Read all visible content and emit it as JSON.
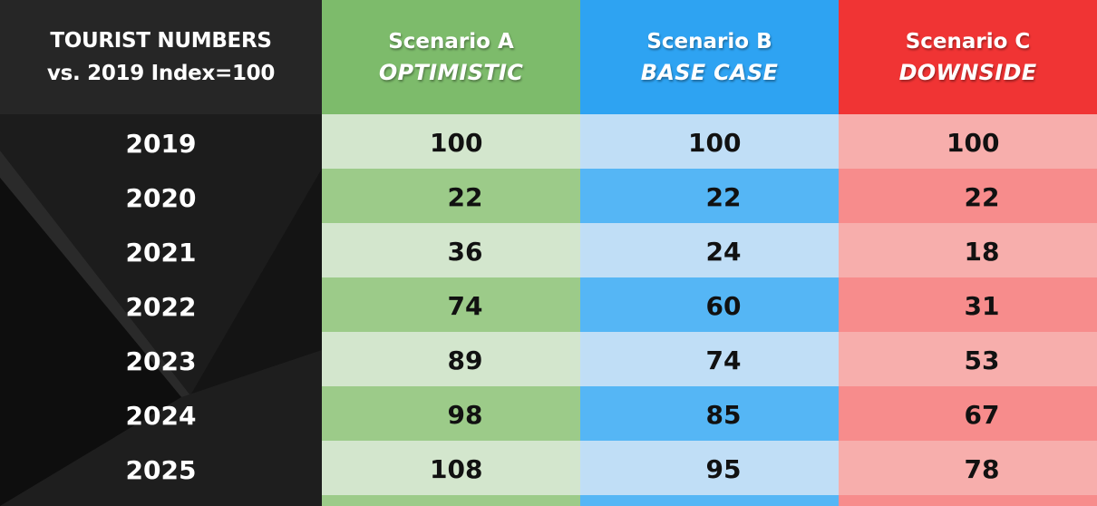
{
  "chart_data": {
    "type": "table",
    "title_lines": [
      "TOURIST NUMBERS",
      "vs. 2019 Index=100"
    ],
    "columns": [
      {
        "name": "Scenario A",
        "subtitle": "OPTIMISTIC",
        "color": "#7dbb6b"
      },
      {
        "name": "Scenario B",
        "subtitle": "BASE CASE",
        "color": "#2ea3f2"
      },
      {
        "name": "Scenario C",
        "subtitle": "DOWNSIDE",
        "color": "#f03434"
      }
    ],
    "years": [
      "2019",
      "2020",
      "2021",
      "2022",
      "2023",
      "2024",
      "2025"
    ],
    "series": [
      {
        "name": "Scenario A",
        "values": [
          100,
          22,
          36,
          74,
          89,
          98,
          108
        ]
      },
      {
        "name": "Scenario B",
        "values": [
          100,
          22,
          24,
          60,
          74,
          85,
          95
        ]
      },
      {
        "name": "Scenario C",
        "values": [
          100,
          22,
          18,
          31,
          53,
          67,
          78
        ]
      }
    ]
  }
}
